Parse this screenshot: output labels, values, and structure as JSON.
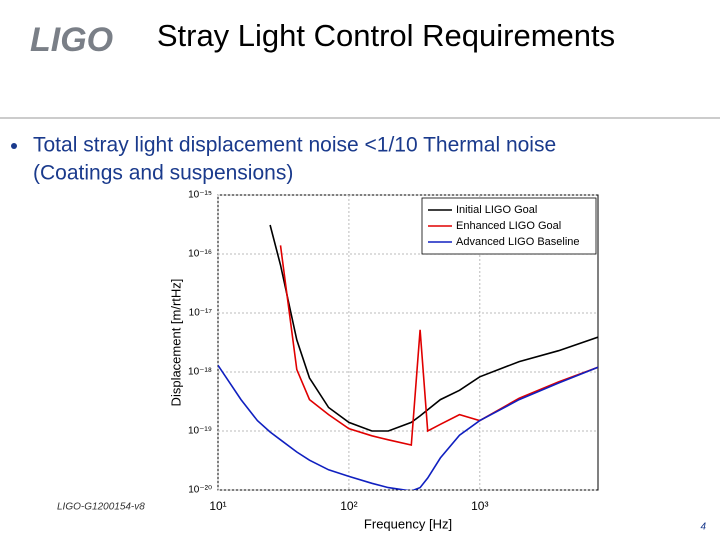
{
  "header": {
    "logo": "LIGO",
    "title": "Stray Light Control Requirements"
  },
  "bullet": [
    "Total stray light displacement noise  <1/10 Thermal noise",
    "(Coatings and suspensions)"
  ],
  "footer": {
    "doc_id": "LIGO-G1200154-v8",
    "page": "4"
  },
  "chart_data": {
    "type": "line",
    "xlabel": "Frequency [Hz]",
    "ylabel": "Displacement [m/rtHz]",
    "xlog": true,
    "ylog": true,
    "grid": true,
    "legend": "upper right",
    "x": [
      10,
      15,
      20,
      25,
      30,
      40,
      50,
      70,
      100,
      150,
      200,
      300,
      350,
      400,
      500,
      700,
      1000,
      2000,
      4000,
      8000
    ],
    "xlim": [
      10,
      8000
    ],
    "xticks": [
      {
        "value": 10,
        "label": "10¹"
      },
      {
        "value": 100,
        "label": "10²"
      },
      {
        "value": 1000,
        "label": "10³"
      }
    ],
    "ylim": [
      1e-20,
      1e-15
    ],
    "yticks": [
      {
        "value": 1e-20,
        "label": "10⁻²⁰"
      },
      {
        "value": 1e-19,
        "label": "10⁻¹⁹"
      },
      {
        "value": 1e-18,
        "label": "10⁻¹⁸"
      },
      {
        "value": 1e-17,
        "label": "10⁻¹⁷"
      },
      {
        "value": 1e-16,
        "label": "10⁻¹⁶"
      },
      {
        "value": 1e-15,
        "label": "10⁻¹⁵"
      }
    ],
    "series": [
      {
        "name": "Initial LIGO Goal",
        "color": "#000000",
        "values": [
          null,
          null,
          null,
          3.1e-16,
          6.5e-17,
          3.5e-18,
          7.9e-19,
          2.5e-19,
          1.4e-19,
          1e-19,
          1e-19,
          1.4e-19,
          1.8e-19,
          2.3e-19,
          3.4e-19,
          4.9e-19,
          8.3e-19,
          1.5e-18,
          2.3e-18,
          3.9e-18
        ]
      },
      {
        "name": "Enhanced LIGO Goal",
        "color": "#e00000",
        "values": [
          null,
          null,
          null,
          null,
          1.4e-16,
          1.1e-18,
          3.4e-19,
          1.9e-19,
          1.1e-19,
          8.3e-20,
          7.1e-20,
          5.8e-20,
          5.2e-18,
          1e-19,
          1.3e-19,
          1.9e-19,
          1.5e-19,
          3.6e-19,
          6.8e-19,
          1.2e-18
        ]
      },
      {
        "name": "Advanced LIGO Baseline",
        "color": "#1020c0",
        "values": [
          1.3e-18,
          3.4e-19,
          1.5e-19,
          9.6e-20,
          7.1e-20,
          4.4e-20,
          3.2e-20,
          2.2e-20,
          1.7e-20,
          1.3e-20,
          1.1e-20,
          9.6e-21,
          1.1e-20,
          1.6e-20,
          3.5e-20,
          8.5e-20,
          1.5e-19,
          3.4e-19,
          6.5e-19,
          1.2e-18
        ]
      }
    ]
  }
}
